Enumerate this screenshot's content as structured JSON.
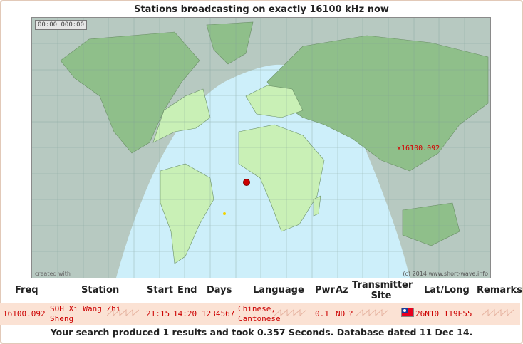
{
  "page": {
    "title": "Stations broadcasting on exactly 16100 kHz now",
    "footer": "Your search produced 1 results and took 0.357 Seconds. Database dated 11 Dec 14."
  },
  "map": {
    "clock": "00:00 000:00",
    "credit_left": "created with",
    "credit_right": "(c) 2014 www.short-wave.info",
    "marker_label": "x16100.092",
    "colors": {
      "ocean_day": "#cdeffa",
      "ocean_night": "#b7c9c1",
      "land_day": "#c9f0b6",
      "land_night": "#8fbf8a",
      "marker": "#cc0000"
    }
  },
  "table": {
    "headers": {
      "freq": "Freq",
      "station": "Station",
      "start": "Start",
      "end": "End",
      "days": "Days",
      "language": "Language",
      "pwr": "Pwr",
      "az": "Az",
      "site_1": "Transmitter",
      "site_2": "Site",
      "latlong": "Lat/Long",
      "remarks": "Remarks"
    },
    "rows": [
      {
        "freq": "16100.092",
        "station_1": "SOH Xi Wang Zhi",
        "station_2": "Sheng",
        "start": "21:15",
        "end": "14:20",
        "days": "1234567",
        "language_1": "Chinese,",
        "language_2": "Cantonese",
        "pwr": "0.1",
        "az": "ND",
        "site": "?",
        "latlong": "26N10 119E55",
        "flag_icon": "taiwan-flag-icon"
      }
    ]
  }
}
